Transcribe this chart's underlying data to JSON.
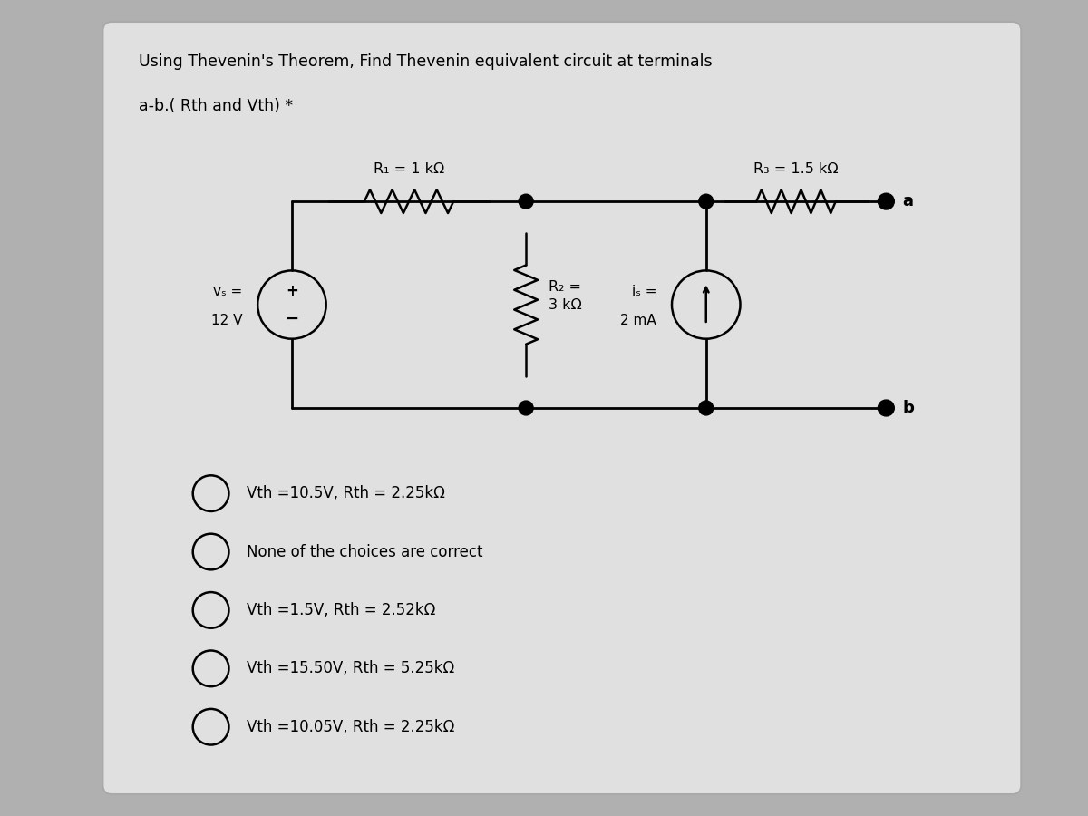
{
  "title_line1": "Using Thevenin's Theorem, Find Thevenin equivalent circuit at terminals",
  "title_line2": "a-b.( Rth and Vth) *",
  "bg_color": "#b0b0b0",
  "panel_color": "#e0e0e0",
  "choices": [
    "Vth =10.5V, Rth = 2.25kΩ",
    "None of the choices are correct",
    "Vth =1.5V, Rth = 2.52kΩ",
    "Vth =15.50V, Rth = 5.25kΩ",
    "Vth =10.05V, Rth = 2.25kΩ"
  ],
  "R1_label": "R₁ = 1 kΩ",
  "R2_label": "R₂ =\n3 kΩ",
  "R3_label": "R₃ = 1.5 kΩ",
  "Vs_label_line1": "vₛ =",
  "Vs_label_line2": "12 V",
  "Is_label_line1": "iₛ =",
  "Is_label_line2": "2 mA",
  "terminal_a": "a",
  "terminal_b": "b"
}
